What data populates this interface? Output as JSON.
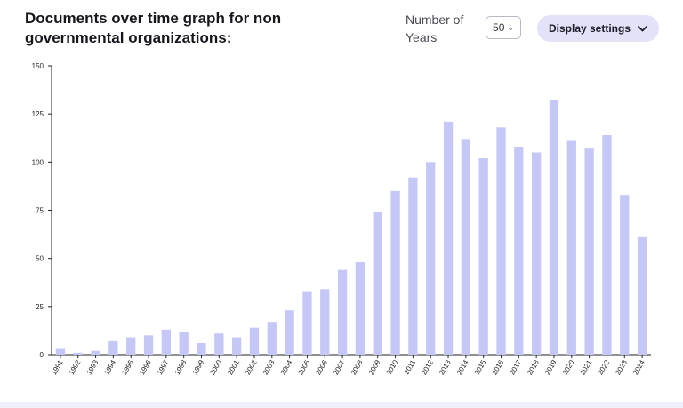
{
  "header": {
    "title": "Documents over time graph for non governmental organizations:",
    "years_label": "Number of Years",
    "years_value": "50",
    "display_settings_label": "Display settings"
  },
  "icons": {
    "select_chevron": "chevron-down-icon",
    "button_chevron": "chevron-down-icon"
  },
  "colors": {
    "bar": "#c5c8f7",
    "button_bg": "#e2e2f8"
  },
  "chart_data": {
    "type": "bar",
    "title": "",
    "xlabel": "",
    "ylabel": "",
    "ylim": [
      0,
      150
    ],
    "yticks": [
      0,
      25,
      50,
      75,
      100,
      125,
      150
    ],
    "grid": false,
    "categories": [
      "1991",
      "1992",
      "1993",
      "1994",
      "1995",
      "1996",
      "1997",
      "1998",
      "1999",
      "2000",
      "2001",
      "2002",
      "2003",
      "2004",
      "2005",
      "2006",
      "2007",
      "2008",
      "2009",
      "2010",
      "2011",
      "2012",
      "2013",
      "2014",
      "2015",
      "2016",
      "2017",
      "2018",
      "2019",
      "2020",
      "2021",
      "2022",
      "2023",
      "2024"
    ],
    "values": [
      3,
      1,
      2,
      7,
      9,
      10,
      13,
      12,
      6,
      11,
      9,
      14,
      17,
      23,
      33,
      34,
      44,
      48,
      74,
      85,
      92,
      100,
      121,
      112,
      102,
      118,
      108,
      105,
      132,
      111,
      107,
      114,
      83,
      61
    ]
  }
}
